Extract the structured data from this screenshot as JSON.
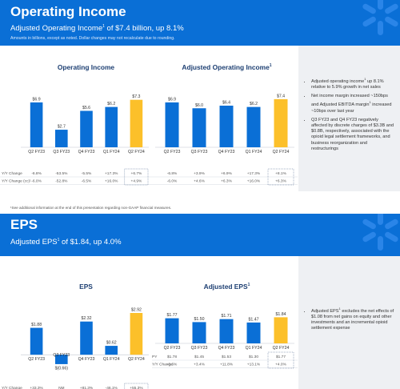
{
  "slide1": {
    "title": "Operating Income",
    "subtitle": "Adjusted Operating Income",
    "subtitle_sup": "1",
    "subtitle_rest": " of $7.4 billion, up 8.1%",
    "note": "Amounts in billions, except as noted.  Dollar changes may not recalculate due to rounding.",
    "footnote": "¹See additional information at the end of this presentation regarding non-GAAP financial measures.",
    "bullets": [
      {
        "text": "Adjusted operating income",
        "sup": "1",
        "rest": " up 8.1% relative to 5.9% growth in net sales"
      },
      {
        "text": "Net income margin increased ~150bps and Adjusted EBITDA margin",
        "sup": "1",
        "rest": " increased ~10bps over last year"
      },
      {
        "text": "Q3 FY23 and Q4 FY23 negatively affected by discrete charges of $3.3B and $0.8B, respectively, associated with the opioid legal settlement frameworks, and business reorganization and restructurings",
        "sup": "",
        "rest": ""
      }
    ]
  },
  "slide2": {
    "title": "EPS",
    "subtitle": "Adjusted EPS",
    "subtitle_sup": "1",
    "subtitle_rest": " of $1.84, up 4.0%",
    "bullets": [
      {
        "text": "Adjusted EPS",
        "sup": "1",
        "rest": " excludes the net effects of $1.08 from net gains on equity and other investments and an incremental opioid settlement expense"
      }
    ]
  },
  "colors": {
    "brand_blue": "#0a6fd6",
    "bar_blue": "#0a6fd6",
    "highlight_yellow": "#fcc02a",
    "text_dark": "#1d3f72"
  },
  "chart_data": [
    {
      "type": "bar",
      "title": "Operating Income",
      "categories": [
        "Q2 FY23",
        "Q3 FY23",
        "Q4 FY23",
        "Q1 FY24",
        "Q2 FY24"
      ],
      "values": [
        6.9,
        2.7,
        5.6,
        6.2,
        7.3
      ],
      "labels": [
        "$6.9",
        "$2.7",
        "$5.6",
        "$6.2",
        "$7.3"
      ],
      "highlight_index": 4,
      "ylim": [
        0,
        8
      ],
      "rows": [
        {
          "label": "Y/Y Change",
          "values": [
            "-6.8%",
            "-53.5%",
            "-5.5%",
            "+17.3%",
            "+6.7%"
          ]
        },
        {
          "label": "Y/Y Change (cc)¹",
          "values": [
            "-6.0%",
            "-52.8%",
            "-6.5%",
            "+16.0%",
            "+4.9%"
          ]
        }
      ]
    },
    {
      "type": "bar",
      "title": "Adjusted Operating Income",
      "title_sup": "1",
      "categories": [
        "Q2 FY23",
        "Q3 FY23",
        "Q4 FY23",
        "Q1 FY24",
        "Q2 FY24"
      ],
      "values": [
        6.9,
        6.0,
        6.4,
        6.2,
        7.4
      ],
      "labels": [
        "$6.9",
        "$6.0",
        "$6.4",
        "$6.2",
        "$7.4"
      ],
      "highlight_index": 4,
      "ylim": [
        0,
        8
      ],
      "rows": [
        {
          "label": "",
          "values": [
            "-6.8%",
            "+3.9%",
            "+6.9%",
            "+17.3%",
            "+8.1%"
          ]
        },
        {
          "label": "",
          "values": [
            "-6.0%",
            "+4.6%",
            "+6.3%",
            "+16.0%",
            "+6.3%"
          ]
        }
      ]
    },
    {
      "type": "bar",
      "title": "EPS",
      "categories": [
        "Q2 FY23",
        "Q3 FY23",
        "Q4 FY23",
        "Q1 FY24",
        "Q2 FY24"
      ],
      "values": [
        1.88,
        -0.66,
        2.32,
        0.62,
        2.92
      ],
      "labels": [
        "$1.88",
        "$(0.66)",
        "$2.32",
        "$0.62",
        "$2.92"
      ],
      "highlight_index": 4,
      "ylim": [
        -1,
        3.2
      ],
      "rows": [
        {
          "label": "Y/Y Change",
          "values": [
            "+33.3%",
            "NM",
            "+81.3%",
            "-46.1%",
            "+55.3%"
          ]
        }
      ]
    },
    {
      "type": "bar",
      "title": "Adjusted EPS",
      "title_sup": "1",
      "categories": [
        "Q2 FY23",
        "Q3 FY23",
        "Q4 FY23",
        "Q1 FY24",
        "Q2 FY24"
      ],
      "values": [
        1.77,
        1.5,
        1.71,
        1.47,
        1.84
      ],
      "labels": [
        "$1.77",
        "$1.50",
        "$1.71",
        "$1.47",
        "$1.84"
      ],
      "highlight_index": 4,
      "ylim": [
        0,
        2.2
      ],
      "rows": [
        {
          "label": "PY",
          "values": [
            "$1.78",
            "$1.45",
            "$1.53",
            "$1.30",
            "$1.77"
          ]
        },
        {
          "label": "Y/Y Change",
          "values": [
            "-0.6%",
            "+3.4%",
            "+11.8%",
            "+13.1%",
            "+4.0%"
          ]
        }
      ]
    }
  ]
}
